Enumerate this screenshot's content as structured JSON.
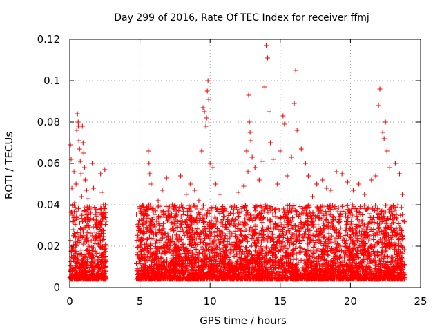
{
  "chart_data": {
    "type": "scatter",
    "title": "Day 299 of 2016, Rate Of TEC Index for receiver ffmj",
    "xlabel": "GPS time / hours",
    "ylabel": "ROTI / TECUs",
    "xlim": [
      0,
      25
    ],
    "ylim": [
      0,
      0.12
    ],
    "xticks": [
      0,
      5,
      10,
      15,
      20,
      25
    ],
    "xtick_labels": [
      "0",
      "5",
      "10",
      "15",
      "20",
      "25"
    ],
    "yticks": [
      0,
      0.02,
      0.04,
      0.06,
      0.08,
      0.1,
      0.12
    ],
    "ytick_labels": [
      "0",
      "0.02",
      "0.04",
      "0.06",
      "0.08",
      "0.1",
      "0.12"
    ],
    "grid": true,
    "marker": "+",
    "color": "#ff0000",
    "series": [
      {
        "name": "ROTI",
        "points": [
          [
            0.05,
            0.069
          ],
          [
            0.1,
            0.062
          ],
          [
            0.15,
            0.048
          ],
          [
            0.2,
            0.035
          ],
          [
            0.25,
            0.028
          ],
          [
            0.3,
            0.056
          ],
          [
            0.35,
            0.041
          ],
          [
            0.4,
            0.022
          ],
          [
            0.45,
            0.05
          ],
          [
            0.5,
            0.076
          ],
          [
            0.55,
            0.084
          ],
          [
            0.6,
            0.08
          ],
          [
            0.62,
            0.078
          ],
          [
            0.65,
            0.071
          ],
          [
            0.7,
            0.067
          ],
          [
            0.75,
            0.061
          ],
          [
            0.8,
            0.055
          ],
          [
            0.85,
            0.044
          ],
          [
            0.9,
            0.078
          ],
          [
            0.95,
            0.07
          ],
          [
            1.0,
            0.065
          ],
          [
            1.05,
            0.058
          ],
          [
            1.1,
            0.052
          ],
          [
            1.2,
            0.047
          ],
          [
            1.3,
            0.043
          ],
          [
            1.4,
            0.039
          ],
          [
            1.5,
            0.036
          ],
          [
            1.6,
            0.06
          ],
          [
            1.7,
            0.048
          ],
          [
            1.8,
            0.033
          ],
          [
            1.9,
            0.031
          ],
          [
            2.0,
            0.029
          ],
          [
            2.1,
            0.027
          ],
          [
            2.2,
            0.055
          ],
          [
            2.3,
            0.046
          ],
          [
            2.4,
            0.04
          ],
          [
            2.5,
            0.057
          ],
          [
            2.6,
            0.032
          ],
          [
            4.9,
            0.031
          ],
          [
            5.1,
            0.036
          ],
          [
            5.3,
            0.027
          ],
          [
            5.6,
            0.066
          ],
          [
            5.65,
            0.06
          ],
          [
            5.7,
            0.055
          ],
          [
            5.8,
            0.05
          ],
          [
            6.0,
            0.03
          ],
          [
            6.3,
            0.042
          ],
          [
            6.6,
            0.047
          ],
          [
            6.9,
            0.053
          ],
          [
            7.3,
            0.04
          ],
          [
            7.6,
            0.035
          ],
          [
            7.9,
            0.054
          ],
          [
            8.3,
            0.045
          ],
          [
            8.6,
            0.05
          ],
          [
            8.9,
            0.047
          ],
          [
            9.2,
            0.042
          ],
          [
            9.4,
            0.066
          ],
          [
            9.5,
            0.087
          ],
          [
            9.6,
            0.085
          ],
          [
            9.7,
            0.078
          ],
          [
            9.75,
            0.082
          ],
          [
            9.8,
            0.095
          ],
          [
            9.85,
            0.1
          ],
          [
            9.9,
            0.091
          ],
          [
            10.0,
            0.06
          ],
          [
            10.2,
            0.058
          ],
          [
            10.4,
            0.05
          ],
          [
            10.7,
            0.045
          ],
          [
            11.0,
            0.038
          ],
          [
            11.5,
            0.032
          ],
          [
            12.0,
            0.046
          ],
          [
            12.4,
            0.049
          ],
          [
            12.6,
            0.066
          ],
          [
            12.7,
            0.056
          ],
          [
            12.75,
            0.093
          ],
          [
            12.8,
            0.08
          ],
          [
            12.85,
            0.075
          ],
          [
            12.9,
            0.071
          ],
          [
            13.0,
            0.063
          ],
          [
            13.2,
            0.058
          ],
          [
            13.5,
            0.052
          ],
          [
            13.7,
            0.061
          ],
          [
            13.9,
            0.097
          ],
          [
            14.0,
            0.117
          ],
          [
            14.1,
            0.111
          ],
          [
            14.2,
            0.085
          ],
          [
            14.3,
            0.07
          ],
          [
            14.5,
            0.062
          ],
          [
            14.8,
            0.05
          ],
          [
            15.0,
            0.066
          ],
          [
            15.2,
            0.083
          ],
          [
            15.3,
            0.079
          ],
          [
            15.5,
            0.054
          ],
          [
            15.8,
            0.063
          ],
          [
            16.0,
            0.089
          ],
          [
            16.1,
            0.105
          ],
          [
            16.2,
            0.076
          ],
          [
            16.5,
            0.067
          ],
          [
            16.8,
            0.06
          ],
          [
            17.0,
            0.054
          ],
          [
            17.3,
            0.044
          ],
          [
            17.6,
            0.05
          ],
          [
            18.0,
            0.052
          ],
          [
            18.3,
            0.048
          ],
          [
            18.6,
            0.047
          ],
          [
            19.0,
            0.056
          ],
          [
            19.4,
            0.055
          ],
          [
            19.8,
            0.051
          ],
          [
            20.2,
            0.047
          ],
          [
            20.6,
            0.05
          ],
          [
            21.0,
            0.045
          ],
          [
            21.5,
            0.052
          ],
          [
            21.8,
            0.054
          ],
          [
            22.0,
            0.088
          ],
          [
            22.1,
            0.096
          ],
          [
            22.3,
            0.075
          ],
          [
            22.4,
            0.072
          ],
          [
            22.5,
            0.08
          ],
          [
            22.6,
            0.066
          ],
          [
            22.8,
            0.058
          ],
          [
            23.2,
            0.06
          ],
          [
            23.5,
            0.055
          ],
          [
            23.7,
            0.045
          ]
        ]
      }
    ],
    "dense_band": {
      "ranges_hours": [
        [
          0,
          2.6
        ],
        [
          4.75,
          23.85
        ]
      ],
      "typical_range": [
        0.004,
        0.04
      ]
    }
  }
}
